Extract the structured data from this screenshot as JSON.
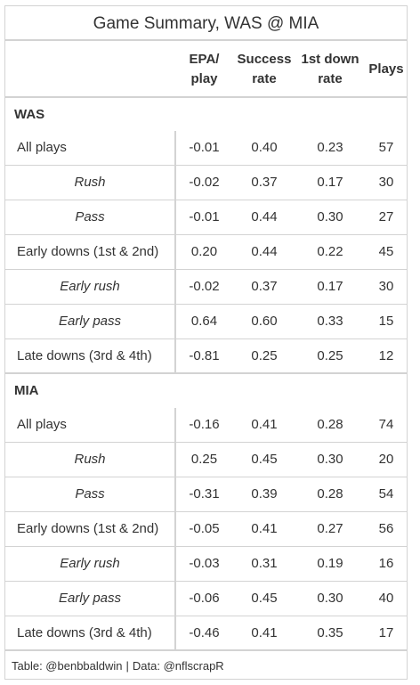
{
  "table": {
    "title": "Game Summary, WAS @ MIA",
    "columns": {
      "epa": "EPA/\nplay",
      "success": "Success\nrate",
      "first_down": "1st down\nrate",
      "plays": "Plays"
    },
    "groups": [
      {
        "name": "WAS",
        "rows": [
          {
            "label": "All plays",
            "epa": "-0.01",
            "success": "0.40",
            "first_down": "0.23",
            "plays": "57"
          },
          {
            "label": "Rush",
            "epa": "-0.02",
            "success": "0.37",
            "first_down": "0.17",
            "plays": "30"
          },
          {
            "label": "Pass",
            "epa": "-0.01",
            "success": "0.44",
            "first_down": "0.30",
            "plays": "27"
          },
          {
            "label": "Early downs (1st & 2nd)",
            "epa": "0.20",
            "success": "0.44",
            "first_down": "0.22",
            "plays": "45"
          },
          {
            "label": "Early rush",
            "epa": "-0.02",
            "success": "0.37",
            "first_down": "0.17",
            "plays": "30"
          },
          {
            "label": "Early pass",
            "epa": "0.64",
            "success": "0.60",
            "first_down": "0.33",
            "plays": "15"
          },
          {
            "label": "Late downs (3rd & 4th)",
            "epa": "-0.81",
            "success": "0.25",
            "first_down": "0.25",
            "plays": "12"
          }
        ]
      },
      {
        "name": "MIA",
        "rows": [
          {
            "label": "All plays",
            "epa": "-0.16",
            "success": "0.41",
            "first_down": "0.28",
            "plays": "74"
          },
          {
            "label": "Rush",
            "epa": "0.25",
            "success": "0.45",
            "first_down": "0.30",
            "plays": "20"
          },
          {
            "label": "Pass",
            "epa": "-0.31",
            "success": "0.39",
            "first_down": "0.28",
            "plays": "54"
          },
          {
            "label": "Early downs (1st & 2nd)",
            "epa": "-0.05",
            "success": "0.41",
            "first_down": "0.27",
            "plays": "56"
          },
          {
            "label": "Early rush",
            "epa": "-0.03",
            "success": "0.31",
            "first_down": "0.19",
            "plays": "16"
          },
          {
            "label": "Early pass",
            "epa": "-0.06",
            "success": "0.45",
            "first_down": "0.30",
            "plays": "40"
          },
          {
            "label": "Late downs (3rd & 4th)",
            "epa": "-0.46",
            "success": "0.41",
            "first_down": "0.35",
            "plays": "17"
          }
        ]
      }
    ],
    "footer": {
      "author": "Table: @benbbaldwin",
      "separator": "|",
      "source": "Data: @nflscrapR"
    }
  }
}
